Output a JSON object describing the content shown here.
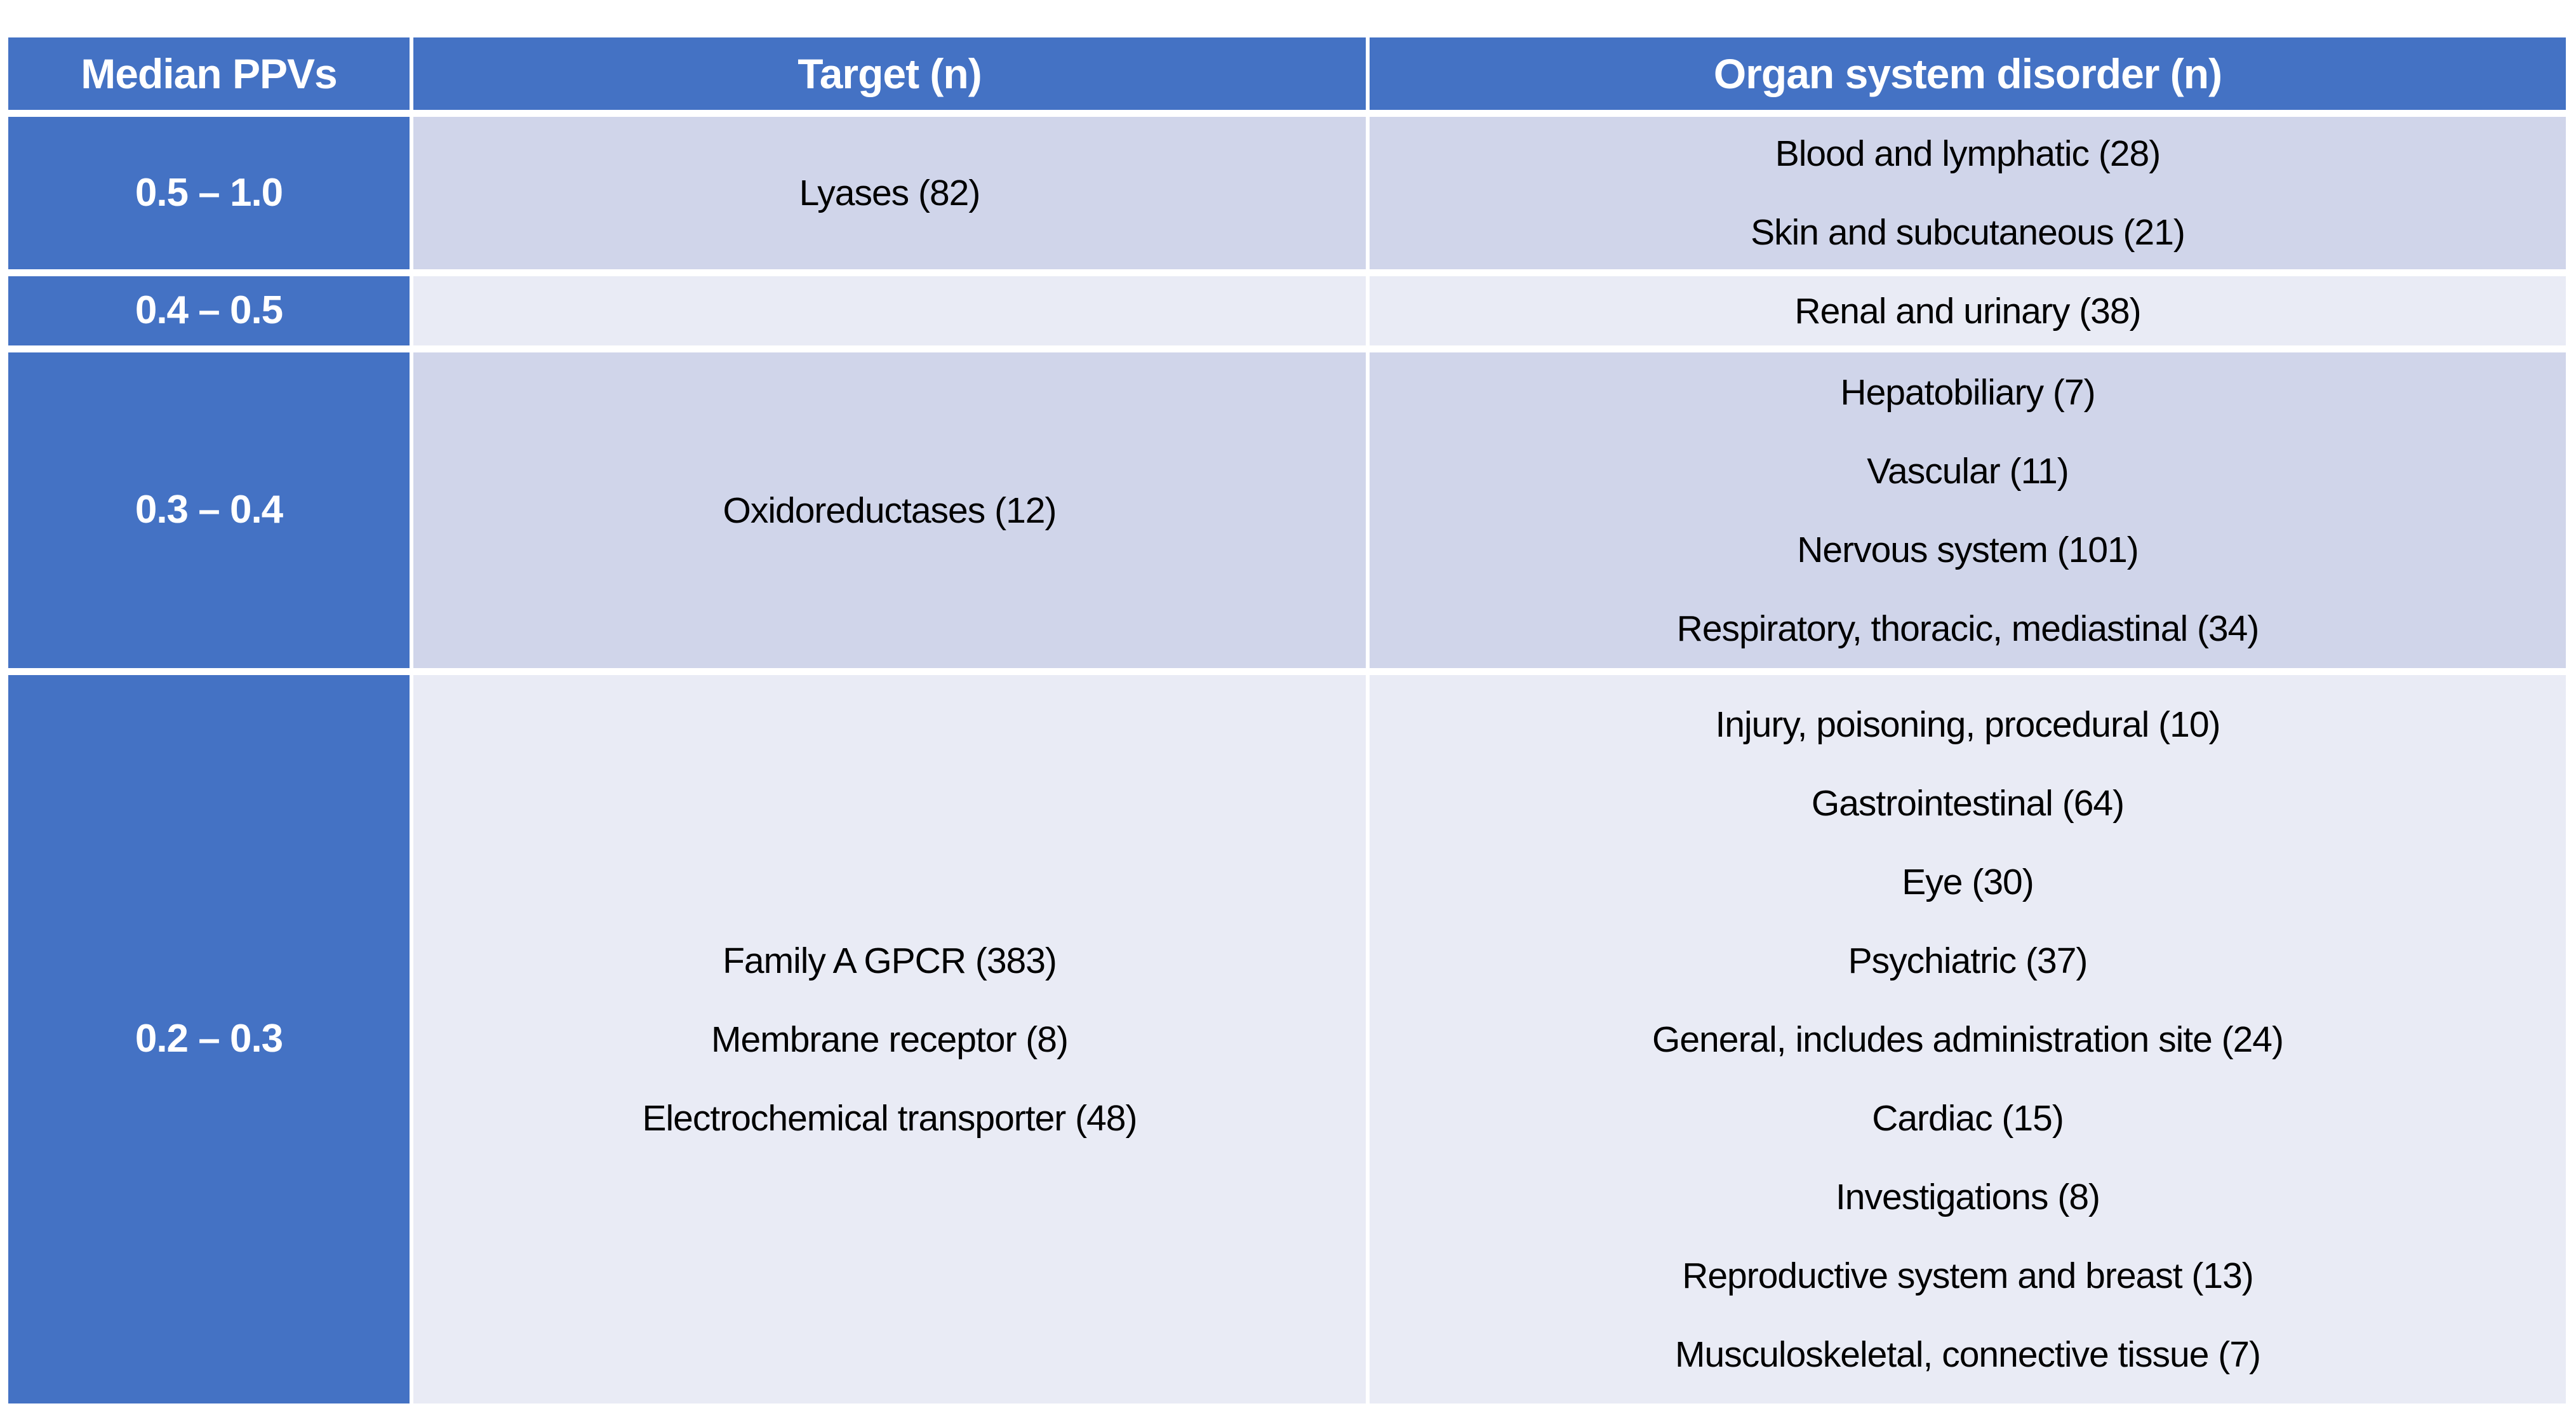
{
  "chart_data": {
    "type": "table",
    "columns": [
      "Median PPVs",
      "Target (n)",
      "Organ system disorder (n)"
    ],
    "rows": [
      {
        "ppv": "0.5 – 1.0",
        "targets": [
          "Lyases (82)"
        ],
        "organs": [
          "Blood and lymphatic (28)",
          "Skin and subcutaneous (21)"
        ]
      },
      {
        "ppv": "0.4 – 0.5",
        "targets": [],
        "organs": [
          "Renal and urinary (38)"
        ]
      },
      {
        "ppv": "0.3 – 0.4",
        "targets": [
          "Oxidoreductases (12)"
        ],
        "organs": [
          "Hepatobiliary (7)",
          "Vascular (11)",
          "Nervous system (101)",
          "Respiratory, thoracic, mediastinal (34)"
        ]
      },
      {
        "ppv": "0.2 – 0.3",
        "targets": [
          "Family A GPCR (383)",
          "Membrane receptor (8)",
          "Electrochemical transporter (48)"
        ],
        "organs": [
          "Injury, poisoning, procedural (10)",
          "Gastrointestinal (64)",
          "Eye (30)",
          "Psychiatric (37)",
          "General, includes administration site (24)",
          "Cardiac (15)",
          "Investigations (8)",
          "Reproductive system and breast (13)",
          "Musculoskeletal, connective tissue (7)"
        ]
      }
    ],
    "layout": {
      "banding": "rows alternate dark/light starting dark",
      "header_position": "top",
      "stub_column": "Median PPVs"
    },
    "colors": {
      "header_bg": "#4472C4",
      "header_text": "#FFFFFF",
      "band_dark": "#D0D5EA",
      "band_light": "#E9EBF5",
      "body_text": "#000000",
      "gutter": "#FFFFFF"
    }
  }
}
